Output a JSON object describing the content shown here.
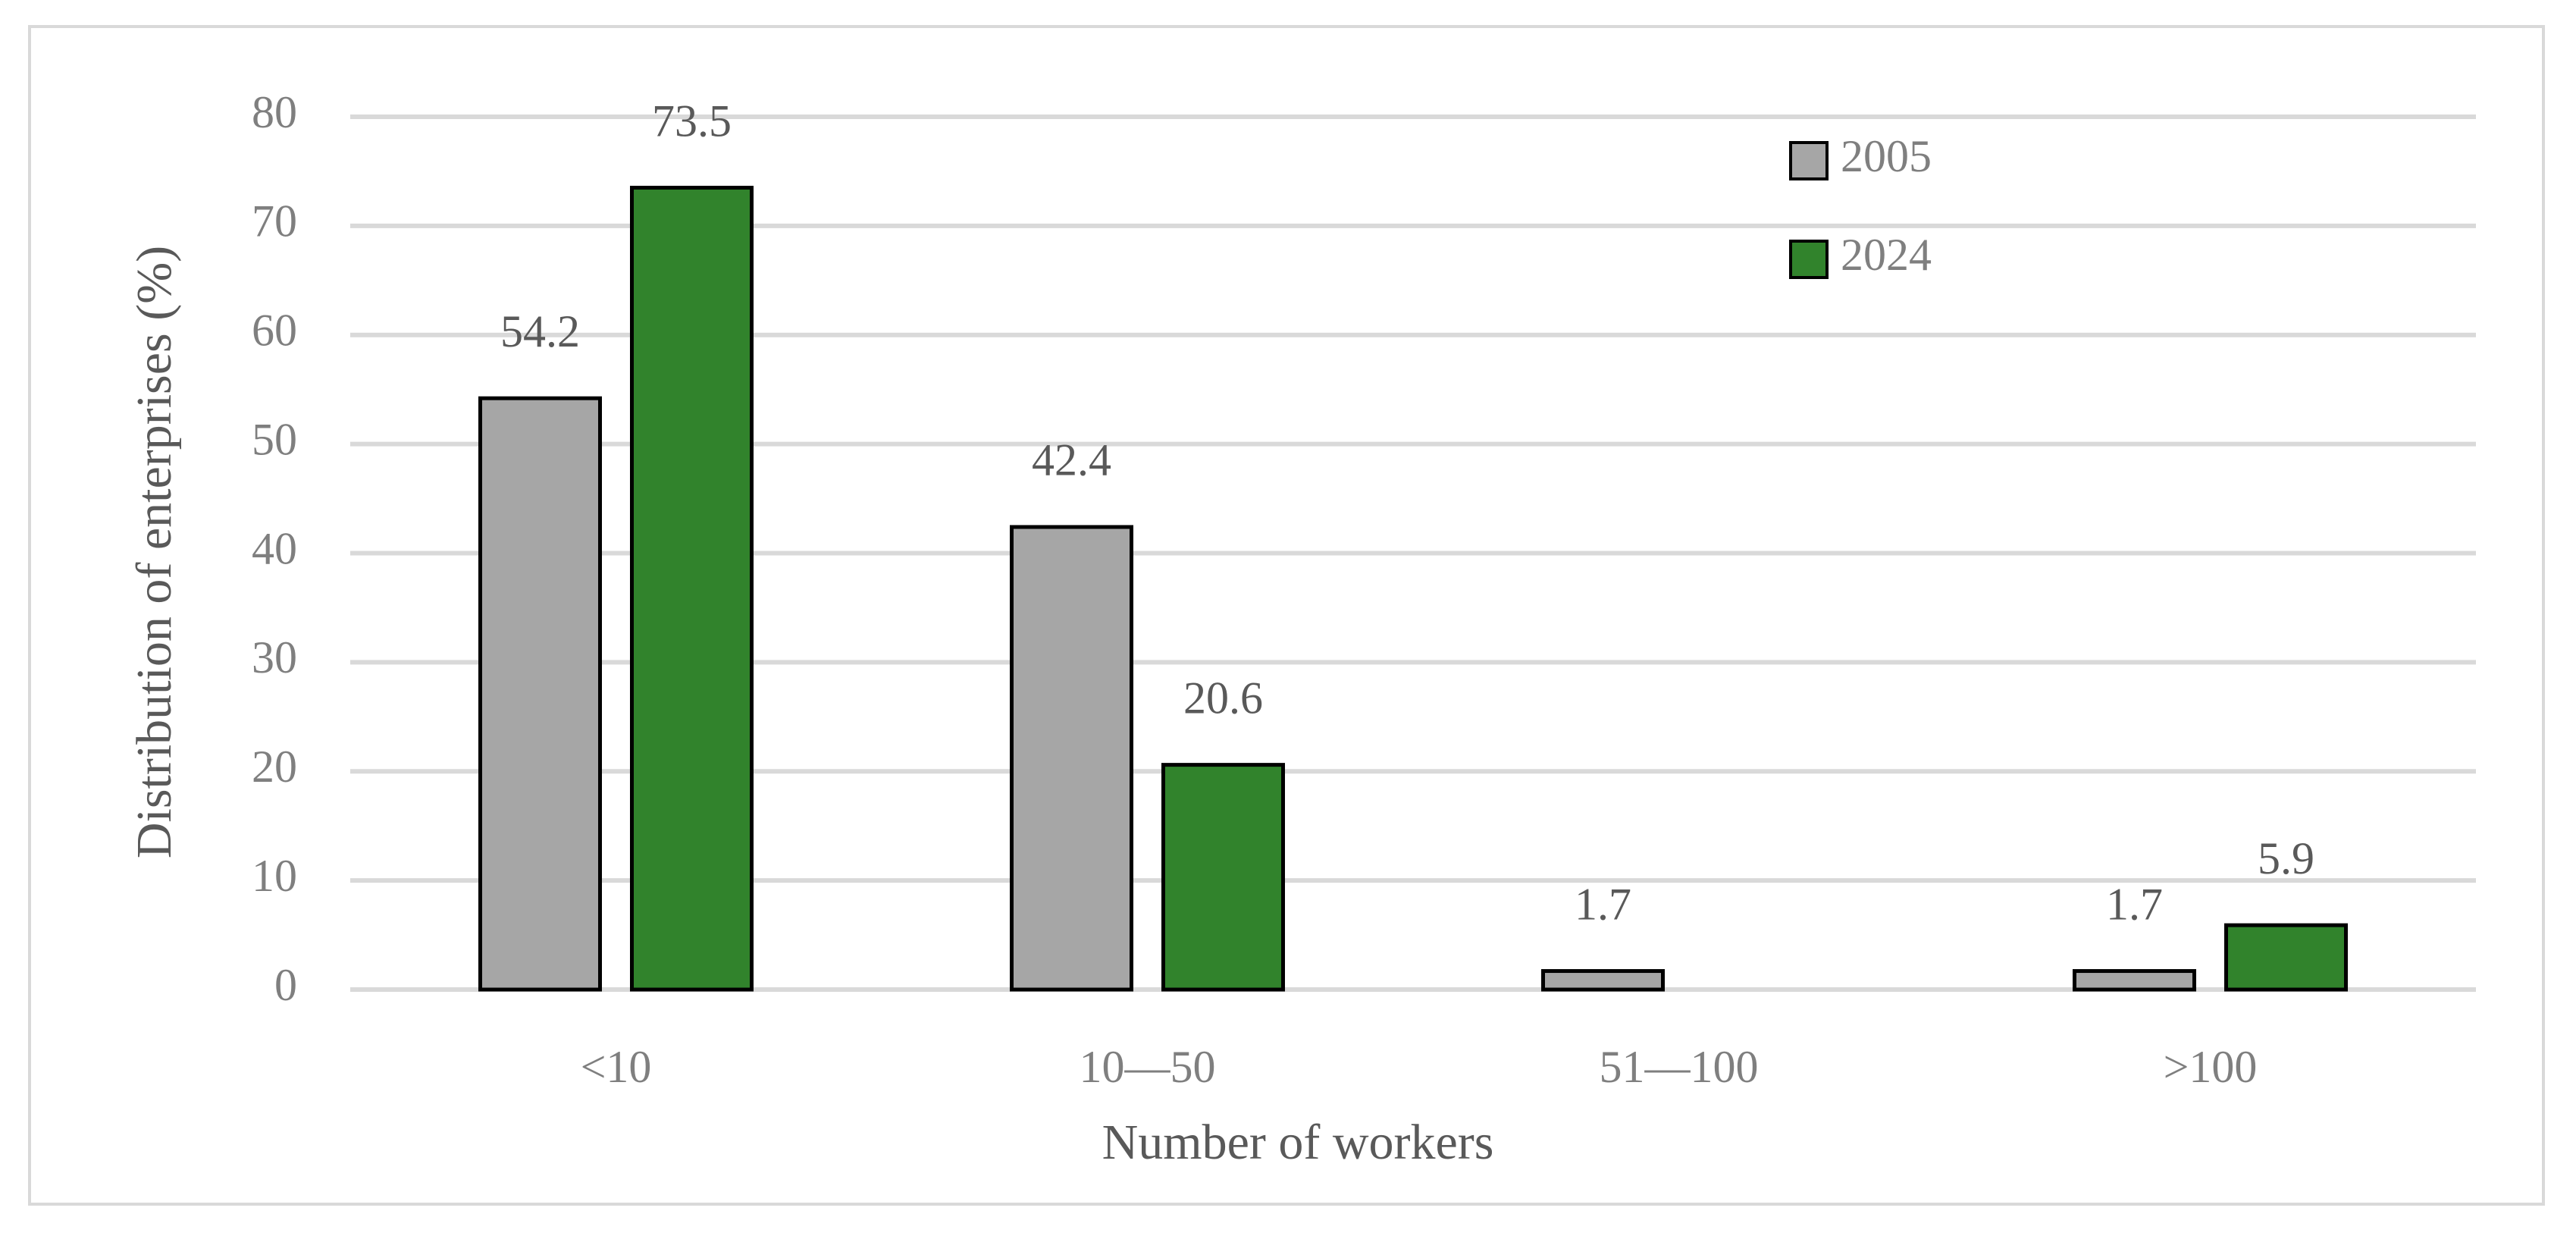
{
  "chart_data": {
    "type": "bar",
    "x_label": "Number of workers",
    "y_label": "Distribution of enterprises (%)",
    "categories": [
      "<10",
      "10—50",
      "51—100",
      ">100"
    ],
    "series": [
      {
        "name": "2005",
        "color": "#a6a6a6",
        "values": [
          54.2,
          42.4,
          1.7,
          1.7
        ]
      },
      {
        "name": "2024",
        "color": "#31832c",
        "values": [
          73.5,
          20.6,
          null,
          5.9
        ]
      }
    ],
    "ylim": [
      0,
      80
    ],
    "yticks": [
      0,
      10,
      20,
      30,
      40,
      50,
      60,
      70,
      80
    ],
    "grid": true,
    "legend": "top-right"
  }
}
